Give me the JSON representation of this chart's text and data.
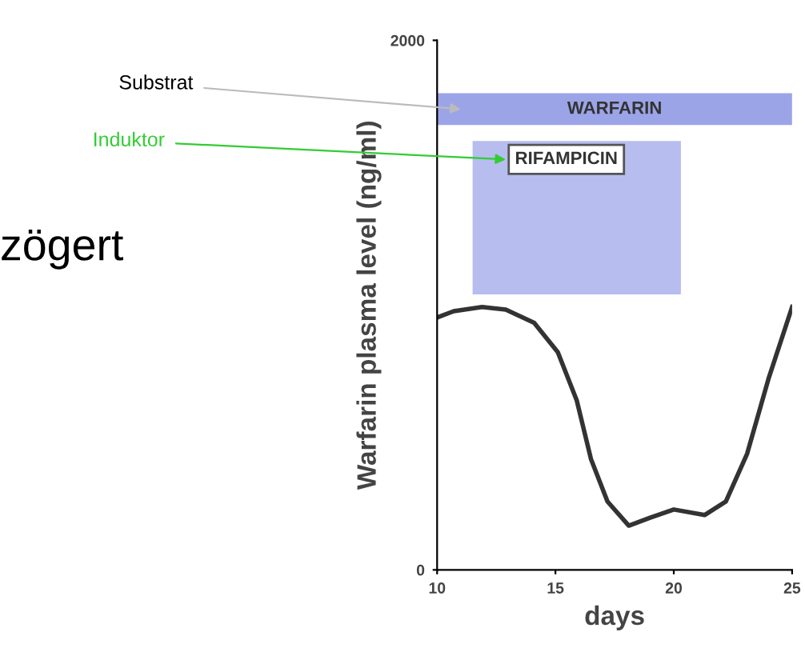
{
  "chart_data": {
    "type": "line",
    "xlabel": "days",
    "ylabel": "Warfarin plasma level (ng/ml)",
    "xlim": [
      10,
      25
    ],
    "ylim": [
      0,
      2000
    ],
    "xticks": [
      10,
      15,
      20,
      25
    ],
    "yticks": [
      0,
      2000
    ],
    "grid": false,
    "legend": false,
    "series": [
      {
        "color": "#333333",
        "x": [
          10,
          10.7,
          11.9,
          12.9,
          14.1,
          15.1,
          15.9,
          16.5,
          17.2,
          18.1,
          19.0,
          20.0,
          21.3,
          22.2,
          23.1,
          24.0,
          25
        ],
        "values": [
          953,
          977,
          993,
          983,
          933,
          822,
          640,
          419,
          258,
          167,
          197,
          228,
          207,
          258,
          439,
          721,
          993
        ]
      }
    ],
    "bands": [
      {
        "axis": "x",
        "from": 10,
        "to": 25,
        "label": "WARFARIN",
        "color": "#7b86e0"
      },
      {
        "axis": "x",
        "from": 11.5,
        "to": 20.3,
        "label": "RIFAMPICIN",
        "color": "#7b86e0"
      }
    ],
    "annotations": [
      "Substrat",
      "Induktor",
      "zögert"
    ]
  }
}
